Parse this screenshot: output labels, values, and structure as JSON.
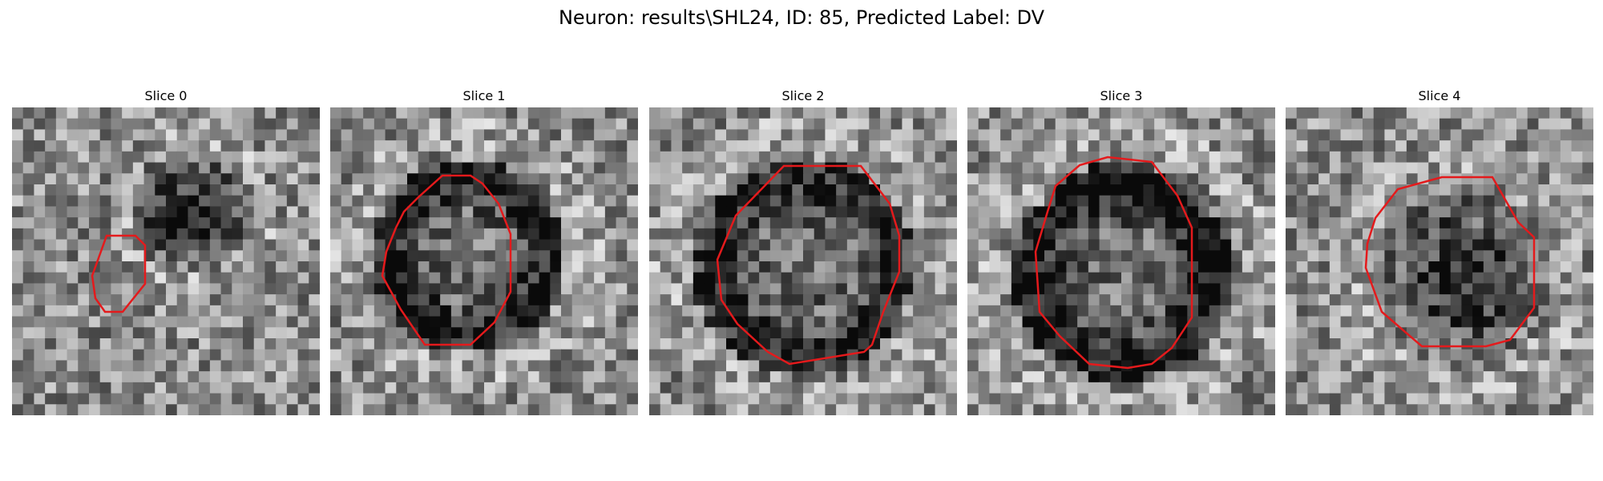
{
  "figure": {
    "suptitle": "Neuron: results\\SHL24, ID: 85, Predicted Label: DV"
  },
  "panels": [
    {
      "title": "Slice 0"
    },
    {
      "title": "Slice 1"
    },
    {
      "title": "Slice 2"
    },
    {
      "title": "Slice 3"
    },
    {
      "title": "Slice 4"
    }
  ],
  "colors": {
    "contour": "#e41a1c",
    "colormap": "grayscale"
  }
}
